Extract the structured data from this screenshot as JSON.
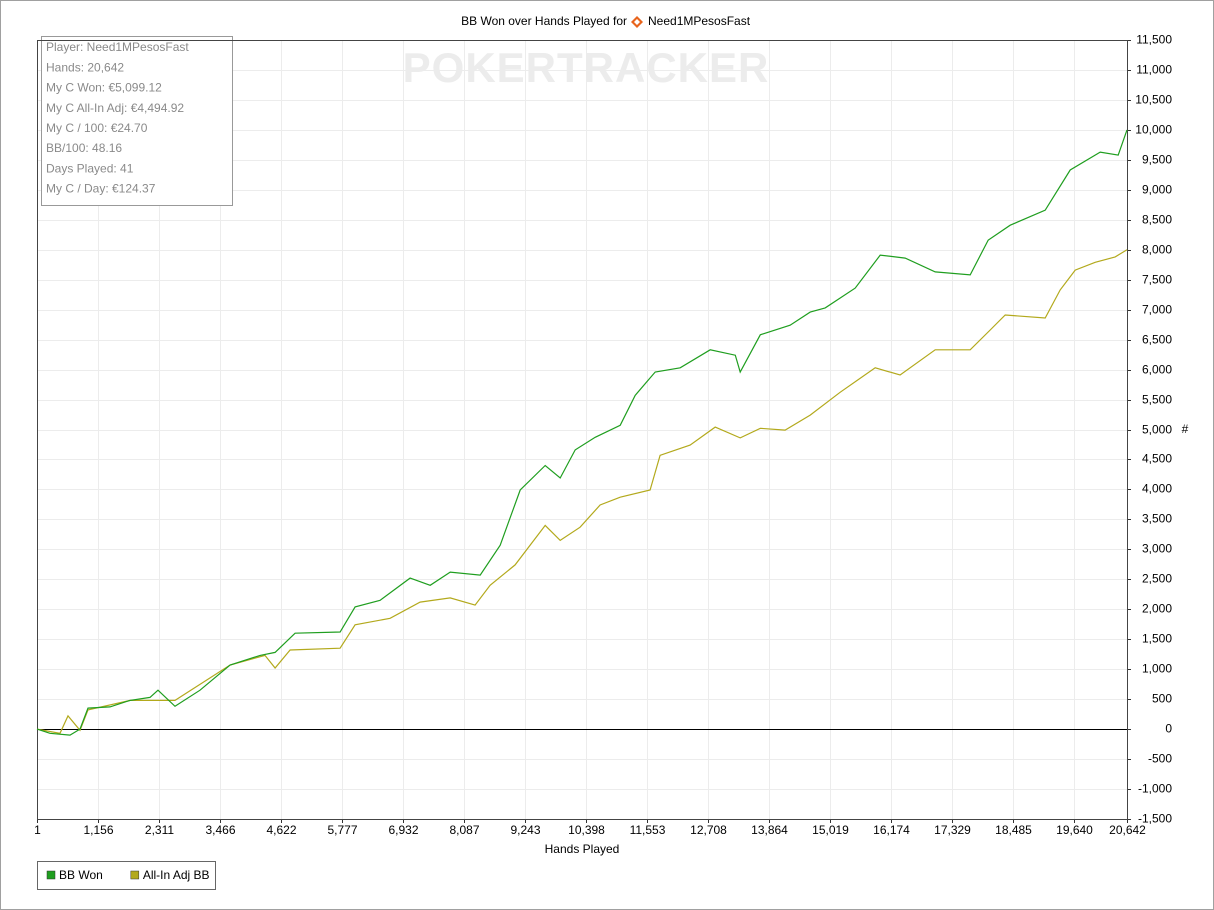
{
  "chart_data": {
    "type": "line",
    "title": "BB Won over Hands Played for",
    "player": "Need1MPesosFast",
    "watermark": "POKERTRACKER",
    "x_label": "Hands Played",
    "y_label": "#",
    "stats": [
      "Player: Need1MPesosFast",
      "Hands: 20,642",
      "My C Won: €5,099.12",
      "My C All-In Adj: €4,494.92",
      "My C / 100: €24.70",
      "BB/100: 48.16",
      "Days Played: 41",
      "My C / Day: €124.37"
    ],
    "xlim": [
      1,
      20642
    ],
    "ylim": [
      -1500,
      11500
    ],
    "xticks": [
      1,
      {
        "value": 1156,
        "label": "1,156"
      },
      {
        "value": 2311,
        "label": "2,311"
      },
      {
        "value": 3466,
        "label": "3,466"
      },
      {
        "value": 4622,
        "label": "4,622"
      },
      {
        "value": 5777,
        "label": "5,777"
      },
      {
        "value": 6932,
        "label": "6,932"
      },
      {
        "value": 8087,
        "label": "8,087"
      },
      {
        "value": 9243,
        "label": "9,243"
      },
      {
        "value": 10398,
        "label": "10,398"
      },
      {
        "value": 11553,
        "label": "11,553"
      },
      {
        "value": 12708,
        "label": "12,708"
      },
      {
        "value": 13864,
        "label": "13,864"
      },
      {
        "value": 15019,
        "label": "15,019"
      },
      {
        "value": 16174,
        "label": "16,174"
      },
      {
        "value": 17329,
        "label": "17,329"
      },
      {
        "value": 18485,
        "label": "18,485"
      },
      {
        "value": 19640,
        "label": "19,640"
      },
      {
        "value": 20642,
        "label": "20,642"
      }
    ],
    "yticks": [
      {
        "value": -1500,
        "label": "-1,500"
      },
      {
        "value": -1000,
        "label": "-1,000"
      },
      -500,
      0,
      500,
      {
        "value": 1000,
        "label": "1,000"
      },
      {
        "value": 1500,
        "label": "1,500"
      },
      {
        "value": 2000,
        "label": "2,000"
      },
      {
        "value": 2500,
        "label": "2,500"
      },
      {
        "value": 3000,
        "label": "3,000"
      },
      {
        "value": 3500,
        "label": "3,500"
      },
      {
        "value": 4000,
        "label": "4,000"
      },
      {
        "value": 4500,
        "label": "4,500"
      },
      {
        "value": 5000,
        "label": "5,000"
      },
      {
        "value": 5500,
        "label": "5,500"
      },
      {
        "value": 6000,
        "label": "6,000"
      },
      {
        "value": 6500,
        "label": "6,500"
      },
      {
        "value": 7000,
        "label": "7,000"
      },
      {
        "value": 7500,
        "label": "7,500"
      },
      {
        "value": 8000,
        "label": "8,000"
      },
      {
        "value": 8500,
        "label": "8,500"
      },
      {
        "value": 9000,
        "label": "9,000"
      },
      {
        "value": 9500,
        "label": "9,500"
      },
      {
        "value": 10000,
        "label": "10,000"
      },
      {
        "value": 10500,
        "label": "10,500"
      },
      {
        "value": 11000,
        "label": "11,000"
      },
      {
        "value": 11500,
        "label": "11,500"
      }
    ],
    "grid": true,
    "series": [
      {
        "name": "BB Won",
        "color": "#1f9e1f",
        "x": [
          1,
          247,
          626,
          815,
          966,
          1384,
          1763,
          2141,
          2293,
          2615,
          3088,
          3657,
          4225,
          4509,
          4888,
          5740,
          6025,
          6498,
          7067,
          7446,
          7825,
          8393,
          8772,
          9151,
          9624,
          9908,
          10192,
          10571,
          11045,
          11329,
          11708,
          12182,
          12750,
          13224,
          13318,
          13697,
          14263,
          14642,
          14926,
          15495,
          15968,
          16441,
          17010,
          17673,
          18013,
          18430,
          19093,
          19566,
          20135,
          20476,
          20642
        ],
        "values": [
          0,
          -70,
          -100,
          0,
          350,
          370,
          480,
          530,
          650,
          380,
          650,
          1070,
          1230,
          1280,
          1600,
          1620,
          2040,
          2150,
          2520,
          2400,
          2620,
          2570,
          3070,
          3990,
          4400,
          4190,
          4660,
          4870,
          5070,
          5570,
          5960,
          6030,
          6330,
          6240,
          5960,
          6580,
          6740,
          6960,
          7030,
          7360,
          7910,
          7860,
          7630,
          7580,
          8160,
          8410,
          8660,
          9330,
          9630,
          9580,
          10000
        ]
      },
      {
        "name": "All-In Adj BB",
        "color": "#b3a91c",
        "x": [
          1,
          437,
          588,
          815,
          966,
          1763,
          2615,
          3657,
          4319,
          4509,
          4793,
          5740,
          6025,
          6687,
          7255,
          7825,
          8297,
          8581,
          9055,
          9624,
          9908,
          10286,
          10665,
          11045,
          11612,
          11801,
          12369,
          12843,
          13318,
          13697,
          14168,
          14642,
          15210,
          15873,
          16346,
          17010,
          17673,
          18051,
          18335,
          19093,
          19377,
          19661,
          20040,
          20419,
          20642
        ],
        "values": [
          0,
          -70,
          220,
          -20,
          320,
          480,
          480,
          1070,
          1230,
          1020,
          1320,
          1350,
          1740,
          1850,
          2120,
          2190,
          2070,
          2400,
          2740,
          3400,
          3150,
          3370,
          3740,
          3870,
          3990,
          4570,
          4740,
          5040,
          4860,
          5020,
          4990,
          5240,
          5620,
          6030,
          5910,
          6330,
          6330,
          6660,
          6910,
          6860,
          7330,
          7660,
          7790,
          7880,
          8000
        ]
      }
    ]
  }
}
